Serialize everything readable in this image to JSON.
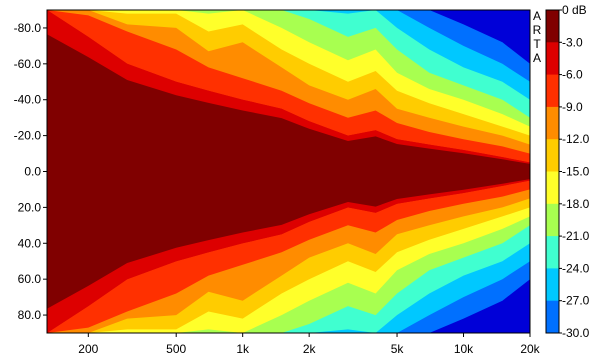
{
  "chart_data": {
    "type": "heatmap",
    "title": "",
    "xlabel": "",
    "ylabel": "",
    "x_scale": "log",
    "x_unit": "Hz",
    "x_range": [
      130,
      20000
    ],
    "y_range": [
      -90,
      90
    ],
    "watermark": "ARTA",
    "x_ticks": [
      {
        "value": 200,
        "label": "200"
      },
      {
        "value": 500,
        "label": "500"
      },
      {
        "value": 1000,
        "label": "1k"
      },
      {
        "value": 2000,
        "label": "2k"
      },
      {
        "value": 5000,
        "label": "5k"
      },
      {
        "value": 10000,
        "label": "10k"
      },
      {
        "value": 20000,
        "label": "20k"
      }
    ],
    "y_ticks": [
      {
        "value": -80,
        "label": "-80.0"
      },
      {
        "value": -60,
        "label": "-60.0"
      },
      {
        "value": -40,
        "label": "-40.0"
      },
      {
        "value": -20,
        "label": "-20.0"
      },
      {
        "value": 0,
        "label": "0.0"
      },
      {
        "value": 20,
        "label": "20.0"
      },
      {
        "value": 40,
        "label": "40.0"
      },
      {
        "value": 60,
        "label": "60.0"
      },
      {
        "value": 80,
        "label": "80.0"
      }
    ],
    "colorbar": [
      {
        "label": "0 dB",
        "color": "#800000"
      },
      {
        "label": "-3.0",
        "color": "#dd0000"
      },
      {
        "label": "-6.0",
        "color": "#ff3000"
      },
      {
        "label": "-9.0",
        "color": "#ff8c00"
      },
      {
        "label": "-12.0",
        "color": "#ffcc00"
      },
      {
        "label": "-15.0",
        "color": "#ffff2a"
      },
      {
        "label": "-18.0",
        "color": "#a8ff50"
      },
      {
        "label": "-21.0",
        "color": "#40ffd0"
      },
      {
        "label": "-24.0",
        "color": "#00c8ff"
      },
      {
        "label": "-27.0",
        "color": "#0070ff"
      },
      {
        "label": "-30.0",
        "color": "#0000d8"
      }
    ],
    "contour_boundaries_abs_angle_deg": {
      "frequencies": [
        130,
        200,
        300,
        500,
        700,
        1000,
        1500,
        2000,
        3000,
        4000,
        5000,
        7000,
        10000,
        15000,
        20000
      ],
      "-3": [
        90,
        75,
        60,
        50,
        45,
        40,
        35,
        28,
        20,
        23,
        18,
        15,
        12,
        8,
        5
      ],
      "-6": [
        90,
        87,
        78,
        68,
        58,
        52,
        45,
        38,
        30,
        34,
        27,
        22,
        18,
        14,
        10
      ],
      "-9": [
        90,
        90,
        82,
        80,
        67,
        72,
        58,
        48,
        40,
        46,
        35,
        30,
        25,
        20,
        15
      ],
      "-12": [
        90,
        90,
        88,
        88,
        78,
        82,
        68,
        60,
        50,
        56,
        45,
        38,
        32,
        25,
        20
      ],
      "-15": [
        90,
        90,
        90,
        90,
        88,
        90,
        80,
        72,
        62,
        68,
        55,
        46,
        40,
        32,
        25
      ],
      "-18": [
        90,
        90,
        90,
        90,
        90,
        90,
        90,
        85,
        75,
        80,
        68,
        55,
        48,
        40,
        30
      ],
      "-21": [
        90,
        90,
        90,
        90,
        90,
        90,
        90,
        90,
        88,
        90,
        80,
        68,
        58,
        50,
        40
      ],
      "-24": [
        90,
        90,
        90,
        90,
        90,
        90,
        90,
        90,
        90,
        90,
        90,
        80,
        70,
        60,
        50
      ],
      "-27": [
        90,
        90,
        90,
        90,
        90,
        90,
        90,
        90,
        90,
        90,
        90,
        90,
        82,
        72,
        60
      ]
    }
  }
}
